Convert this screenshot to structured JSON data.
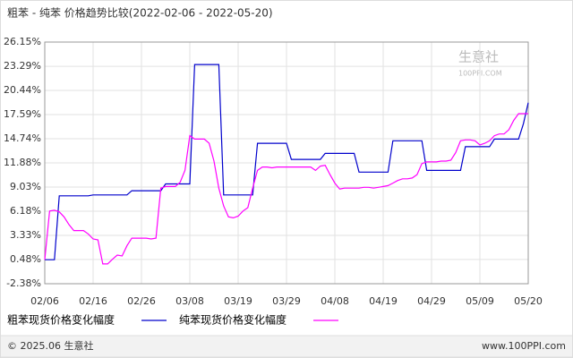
{
  "chart_data": {
    "type": "line",
    "title": "粗苯 - 纯苯 价格趋势比较(2022-02-06 - 2022-05-20)",
    "watermark": {
      "name": "生意社",
      "site": "100PPI.COM"
    },
    "footer": {
      "left": "© 2025.06 生意社",
      "right": "www.100PPI.com"
    },
    "categories": [
      "02/06",
      null,
      null,
      null,
      null,
      null,
      null,
      null,
      null,
      null,
      "02/16",
      null,
      null,
      null,
      null,
      null,
      null,
      null,
      null,
      null,
      "02/26",
      null,
      null,
      null,
      null,
      null,
      null,
      null,
      null,
      null,
      "03/08",
      null,
      null,
      null,
      null,
      null,
      null,
      null,
      null,
      null,
      "03/19",
      null,
      null,
      null,
      null,
      null,
      null,
      null,
      null,
      null,
      "03/29",
      null,
      null,
      null,
      null,
      null,
      null,
      null,
      null,
      null,
      "04/08",
      null,
      null,
      null,
      null,
      null,
      null,
      null,
      null,
      null,
      "04/19",
      null,
      null,
      null,
      null,
      null,
      null,
      null,
      null,
      null,
      "04/29",
      null,
      null,
      null,
      null,
      null,
      null,
      null,
      null,
      null,
      "05/09",
      null,
      null,
      null,
      null,
      null,
      null,
      null,
      null,
      null,
      "05/20"
    ],
    "series": [
      {
        "name": "粗苯现货价格变化幅度",
        "color": "#0000cc",
        "values": [
          0.45,
          0.45,
          0.45,
          8.0,
          8.0,
          8.0,
          8.0,
          8.0,
          8.0,
          8.0,
          8.1,
          8.1,
          8.1,
          8.1,
          8.1,
          8.1,
          8.1,
          8.1,
          8.6,
          8.6,
          8.6,
          8.6,
          8.6,
          8.6,
          8.6,
          9.4,
          9.4,
          9.4,
          9.4,
          9.4,
          9.4,
          23.5,
          23.5,
          23.5,
          23.5,
          23.5,
          23.5,
          8.1,
          8.1,
          8.1,
          8.1,
          8.1,
          8.1,
          8.1,
          14.2,
          14.2,
          14.2,
          14.2,
          14.2,
          14.2,
          14.2,
          12.3,
          12.3,
          12.3,
          12.3,
          12.3,
          12.3,
          12.3,
          13.0,
          13.0,
          13.0,
          13.0,
          13.0,
          13.0,
          13.0,
          10.8,
          10.8,
          10.8,
          10.8,
          10.8,
          10.8,
          10.8,
          14.5,
          14.5,
          14.5,
          14.5,
          14.5,
          14.5,
          14.5,
          11.0,
          11.0,
          11.0,
          11.0,
          11.0,
          11.0,
          11.0,
          11.0,
          13.8,
          13.8,
          13.8,
          13.8,
          13.8,
          13.8,
          14.7,
          14.7,
          14.7,
          14.7,
          14.7,
          14.7,
          16.5,
          19.0
        ]
      },
      {
        "name": "纯苯现货价格变化幅度",
        "color": "#ff00ff",
        "values": [
          0.45,
          6.2,
          6.3,
          6.1,
          5.5,
          4.6,
          3.9,
          3.9,
          3.9,
          3.5,
          2.9,
          2.8,
          -0.05,
          -0.05,
          0.5,
          1.0,
          0.9,
          2.1,
          3.0,
          3.0,
          3.0,
          3.0,
          2.9,
          3.0,
          8.9,
          9.1,
          9.1,
          9.1,
          9.6,
          11.0,
          15.1,
          14.7,
          14.7,
          14.7,
          14.2,
          12.1,
          8.9,
          6.8,
          5.5,
          5.4,
          5.6,
          6.2,
          6.6,
          8.9,
          11.0,
          11.4,
          11.4,
          11.3,
          11.4,
          11.4,
          11.4,
          11.4,
          11.4,
          11.4,
          11.4,
          11.4,
          11.0,
          11.5,
          11.6,
          10.5,
          9.5,
          8.8,
          8.9,
          8.9,
          8.9,
          8.9,
          9.0,
          9.0,
          8.9,
          9.0,
          9.1,
          9.2,
          9.5,
          9.8,
          10.0,
          10.0,
          10.1,
          10.5,
          11.8,
          12.0,
          12.0,
          12.0,
          12.1,
          12.1,
          12.2,
          13.1,
          14.5,
          14.6,
          14.6,
          14.5,
          14.0,
          14.2,
          14.5,
          15.1,
          15.3,
          15.3,
          15.8,
          16.9,
          17.7,
          17.7,
          17.7
        ]
      }
    ],
    "ylim": [
      -2.38,
      26.15
    ],
    "yticks": [
      {
        "value": -2.38,
        "label": "-2.38%"
      },
      {
        "value": 0.48,
        "label": "0.48%"
      },
      {
        "value": 3.33,
        "label": "3.33%"
      },
      {
        "value": 6.18,
        "label": "6.18%"
      },
      {
        "value": 9.03,
        "label": "9.03%"
      },
      {
        "value": 11.88,
        "label": "11.88%"
      },
      {
        "value": 14.74,
        "label": "14.74%"
      },
      {
        "value": 17.59,
        "label": "17.59%"
      },
      {
        "value": 20.44,
        "label": "20.44%"
      },
      {
        "value": 23.29,
        "label": "23.29%"
      },
      {
        "value": 26.15,
        "label": "26.15%"
      }
    ],
    "grid": true
  }
}
